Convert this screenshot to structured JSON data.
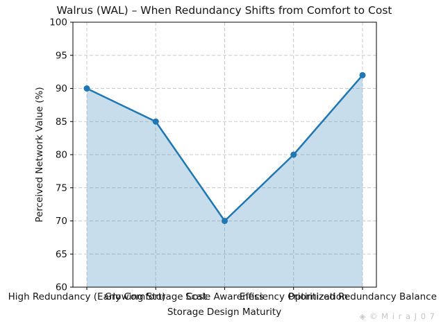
{
  "figure": {
    "watermark": "◈ © M i r a J 0 7",
    "background_color": "#ffffff"
  },
  "chart_data": {
    "type": "line",
    "title": "Walrus (WAL) – When Redundancy Shifts from Comfort to Cost",
    "xlabel": "Storage Design Maturity",
    "ylabel": "Perceived Network Value (%)",
    "categories": [
      "High Redundancy (Early Comfort)",
      "Growing Storage Cost",
      "Scale Awareness",
      "Efficiency Optimization",
      "Prioritized Redundancy Balance"
    ],
    "values": [
      90,
      85,
      70,
      80,
      92
    ],
    "ylim": [
      60,
      100
    ],
    "ytick_step": 5,
    "yticks": [
      60,
      65,
      70,
      75,
      80,
      85,
      90,
      95,
      100
    ],
    "grid": true,
    "grid_style": "dashed",
    "legend": null,
    "line_color": "#1f77b4",
    "marker": "circle",
    "area_fill": true,
    "fill_opacity": 0.25,
    "grid_color": "#cbcbcb",
    "spine_color": "#000000",
    "tick_label_color": "#151515"
  }
}
